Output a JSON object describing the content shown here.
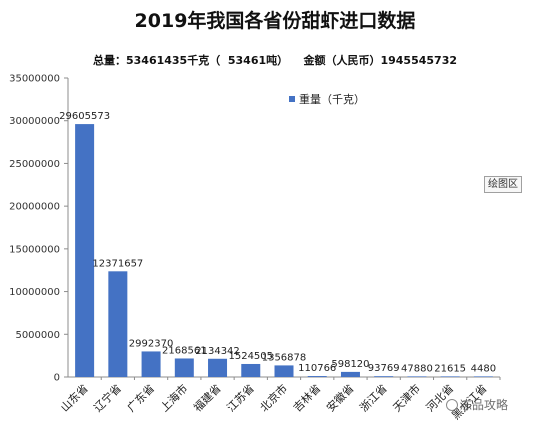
{
  "chart_data": {
    "type": "bar",
    "title": "2019年我国各省份甜虾进口数据",
    "subtitle": "总量：53461435千克（  53461吨）    金额（人民币）1945545732",
    "categories": [
      "山东省",
      "辽宁省",
      "广东省",
      "上海市",
      "福建省",
      "江苏省",
      "北京市",
      "吉林省",
      "安徽省",
      "浙江省",
      "天津市",
      "河北省",
      "黑龙江省"
    ],
    "series": [
      {
        "name": "重量（千克）",
        "values": [
          29605573,
          12371657,
          2992370,
          2168561,
          2134342,
          1524505,
          1356878,
          110766,
          598120,
          93769,
          47880,
          21615,
          4480
        ],
        "labels": [
          "29605573",
          "12371657",
          "2992370",
          "2168561",
          "2134342",
          "1524505",
          "1356878",
          "110766",
          "598120",
          "93769",
          "47880",
          "21615",
          "4480"
        ]
      }
    ],
    "yticks": [
      "0",
      "5000000",
      "10000000",
      "15000000",
      "20000000",
      "25000000",
      "30000000",
      "35000000"
    ],
    "ylim": [
      0,
      35000000
    ],
    "xlabel": "",
    "ylabel": "",
    "grid": false,
    "legend": "top-right",
    "color": "#4472C4"
  },
  "plot_area_button": "绘图区",
  "watermark": "冻品攻略"
}
